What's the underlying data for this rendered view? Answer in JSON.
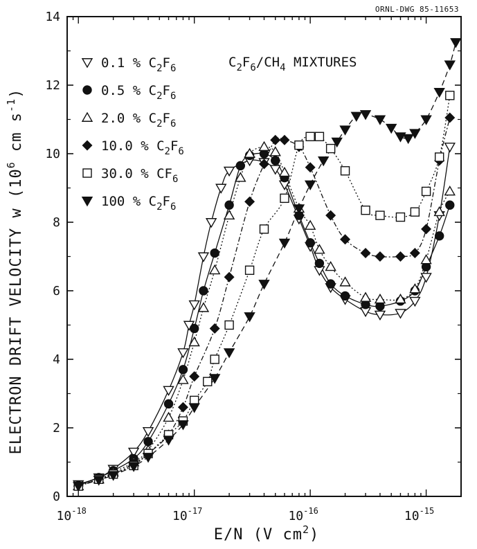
{
  "chart_data": {
    "type": "scatter",
    "title": "C2F6/CH4 MIXTURES",
    "drawing_id": "ORNL-DWG 85-11653",
    "xlabel": "E/N (V cm2)",
    "ylabel": "ELECTRON DRIFT VELOCITY w (106 cm s-1)",
    "x_scale": "log",
    "xlim": [
      8e-19,
      2e-15
    ],
    "ylim": [
      0,
      14
    ],
    "x_ticks": [
      1e-18,
      1e-17,
      1e-16,
      1e-15
    ],
    "x_tick_labels": [
      "10-18",
      "10-17",
      "10-16",
      "10-15"
    ],
    "y_ticks": [
      0,
      2,
      4,
      6,
      8,
      10,
      12,
      14
    ],
    "y_tick_labels": [
      "0",
      "2",
      "4",
      "6",
      "8",
      "10",
      "12",
      "14"
    ],
    "grid": false,
    "legend_position": "top-left",
    "series": [
      {
        "name": "0.1 % C2F6",
        "label_main": "0.1 %",
        "label_gas": "C",
        "label_sub": [
          "2",
          "6"
        ],
        "marker": "triangle-down-open",
        "line": "solid",
        "x": [
          1e-18,
          1.5e-18,
          2e-18,
          3e-18,
          4e-18,
          6e-18,
          8e-18,
          9e-18,
          1e-17,
          1.2e-17,
          1.4e-17,
          1.7e-17,
          2e-17,
          3e-17,
          4e-17,
          5e-17,
          6e-17,
          8e-17,
          1e-16,
          1.2e-16,
          1.5e-16,
          2e-16,
          3e-16,
          4e-16,
          6e-16,
          8e-16,
          1e-15,
          1.3e-15,
          1.6e-15
        ],
        "y": [
          0.35,
          0.55,
          0.8,
          1.3,
          1.9,
          3.1,
          4.2,
          5.0,
          5.6,
          7.0,
          8.0,
          9.0,
          9.5,
          9.8,
          9.75,
          9.55,
          9.1,
          8.1,
          7.3,
          6.6,
          6.1,
          5.75,
          5.4,
          5.3,
          5.35,
          5.7,
          6.4,
          8.2,
          10.2
        ]
      },
      {
        "name": "0.5 % C2F6",
        "label_main": "0.5 %",
        "label_gas": "C",
        "label_sub": [
          "2",
          "6"
        ],
        "marker": "circle-filled",
        "line": "solid",
        "x": [
          1e-18,
          1.5e-18,
          2e-18,
          3e-18,
          4e-18,
          6e-18,
          8e-18,
          1e-17,
          1.2e-17,
          1.5e-17,
          2e-17,
          2.5e-17,
          3e-17,
          4e-17,
          5e-17,
          6e-17,
          8e-17,
          1e-16,
          1.2e-16,
          1.5e-16,
          2e-16,
          3e-16,
          4e-16,
          6e-16,
          8e-16,
          1e-15,
          1.3e-15,
          1.6e-15
        ],
        "y": [
          0.32,
          0.55,
          0.75,
          1.1,
          1.6,
          2.7,
          3.7,
          4.9,
          6.0,
          7.1,
          8.5,
          9.65,
          9.95,
          10.0,
          9.8,
          9.3,
          8.2,
          7.4,
          6.8,
          6.2,
          5.85,
          5.6,
          5.55,
          5.7,
          6.0,
          6.7,
          7.6,
          8.5
        ]
      },
      {
        "name": "2.0 % C2F6",
        "label_main": "2.0 %",
        "label_gas": "C",
        "label_sub": [
          "2",
          "6"
        ],
        "marker": "triangle-up-open",
        "line": "dotted",
        "x": [
          1e-18,
          1.5e-18,
          2e-18,
          3e-18,
          4e-18,
          6e-18,
          8e-18,
          1e-17,
          1.2e-17,
          1.5e-17,
          2e-17,
          2.5e-17,
          3e-17,
          4e-17,
          5e-17,
          6e-17,
          8e-17,
          1e-16,
          1.2e-16,
          1.5e-16,
          2e-16,
          3e-16,
          4e-16,
          6e-16,
          8e-16,
          1e-15,
          1.3e-15,
          1.6e-15
        ],
        "y": [
          0.3,
          0.5,
          0.7,
          1.0,
          1.35,
          2.3,
          3.4,
          4.5,
          5.5,
          6.6,
          8.2,
          9.3,
          10.0,
          10.2,
          10.05,
          9.45,
          8.4,
          7.9,
          7.2,
          6.7,
          6.25,
          5.8,
          5.75,
          5.75,
          6.05,
          6.9,
          8.3,
          8.9
        ]
      },
      {
        "name": "10.0 % C2F6",
        "label_main": "10.0 %",
        "label_gas": "C",
        "label_sub": [
          "2",
          "6"
        ],
        "marker": "diamond-filled",
        "line": "dashdot",
        "x": [
          1e-18,
          1.5e-18,
          2e-18,
          3e-18,
          4e-18,
          6e-18,
          8e-18,
          1e-17,
          1.5e-17,
          2e-17,
          3e-17,
          4e-17,
          5e-17,
          6e-17,
          8e-17,
          1e-16,
          1.5e-16,
          2e-16,
          3e-16,
          4e-16,
          6e-16,
          8e-16,
          1e-15,
          1.3e-15,
          1.6e-15
        ],
        "y": [
          0.3,
          0.5,
          0.65,
          0.95,
          1.25,
          1.8,
          2.6,
          3.5,
          4.9,
          6.4,
          8.6,
          9.7,
          10.4,
          10.4,
          10.2,
          9.6,
          8.2,
          7.5,
          7.1,
          7.0,
          7.0,
          7.1,
          7.8,
          9.8,
          11.05
        ]
      },
      {
        "name": "30.0 % CF6",
        "label_main": "30.0 %",
        "label_gas": "CF",
        "label_sub": [
          "6"
        ],
        "marker": "square-open",
        "line": "dotted",
        "x": [
          1e-18,
          1.5e-18,
          2e-18,
          3e-18,
          4e-18,
          6e-18,
          8e-18,
          1e-17,
          1.3e-17,
          1.5e-17,
          2e-17,
          3e-17,
          4e-17,
          6e-17,
          8e-17,
          1e-16,
          1.2e-16,
          1.5e-16,
          2e-16,
          3e-16,
          4e-16,
          6e-16,
          8e-16,
          1e-15,
          1.3e-15,
          1.6e-15
        ],
        "y": [
          0.3,
          0.5,
          0.65,
          0.9,
          1.25,
          1.8,
          2.2,
          2.8,
          3.35,
          4.0,
          5.0,
          6.6,
          7.8,
          8.7,
          10.25,
          10.5,
          10.5,
          10.15,
          9.5,
          8.35,
          8.2,
          8.15,
          8.3,
          8.9,
          9.9,
          11.7
        ]
      },
      {
        "name": "100 % C2F6",
        "label_main": "100 %",
        "label_gas": "C",
        "label_sub": [
          "2",
          "6"
        ],
        "marker": "triangle-down-filled",
        "line": "dashed",
        "x": [
          1e-18,
          1.5e-18,
          2e-18,
          3e-18,
          4e-18,
          6e-18,
          8e-18,
          1e-17,
          1.5e-17,
          2e-17,
          3e-17,
          4e-17,
          6e-17,
          8e-17,
          1e-16,
          1.3e-16,
          1.7e-16,
          2e-16,
          2.5e-16,
          3e-16,
          4e-16,
          5e-16,
          6e-16,
          7e-16,
          8e-16,
          1e-15,
          1.3e-15,
          1.6e-15,
          1.8e-15
        ],
        "y": [
          0.3,
          0.48,
          0.62,
          0.88,
          1.15,
          1.65,
          2.1,
          2.6,
          3.45,
          4.2,
          5.25,
          6.2,
          7.4,
          8.4,
          9.1,
          9.8,
          10.35,
          10.7,
          11.1,
          11.15,
          11.0,
          10.75,
          10.5,
          10.45,
          10.6,
          11.0,
          11.8,
          12.6,
          13.25
        ]
      }
    ]
  }
}
